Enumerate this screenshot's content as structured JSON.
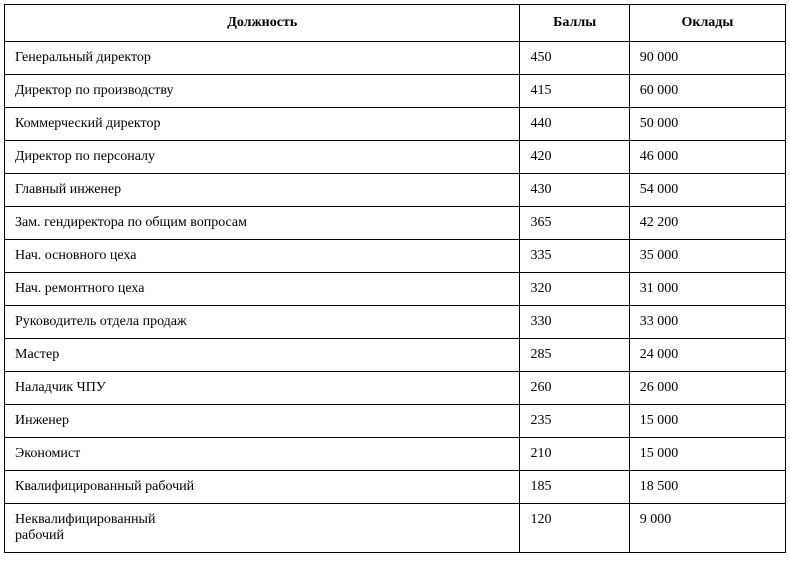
{
  "table": {
    "columns": [
      {
        "label": "Должность",
        "align": "center"
      },
      {
        "label": "Баллы",
        "align": "center"
      },
      {
        "label": "Оклады",
        "align": "center"
      }
    ],
    "rows": [
      {
        "position": "Генеральный директор",
        "points": "450",
        "salary": "90 000"
      },
      {
        "position": "Директор по производству",
        "points": "415",
        "salary": "60 000"
      },
      {
        "position": "Коммерческий директор",
        "points": "440",
        "salary": "50 000"
      },
      {
        "position": "Директор по персоналу",
        "points": "420",
        "salary": "46 000"
      },
      {
        "position": "Главный инженер",
        "points": "430",
        "salary": "54 000"
      },
      {
        "position": "Зам. гендиректора по общим вопросам",
        "points": "365",
        "salary": "42 200"
      },
      {
        "position": "Нач. основного цеха",
        "points": "335",
        "salary": "35 000"
      },
      {
        "position": "Нач. ремонтного цеха",
        "points": "320",
        "salary": "31 000"
      },
      {
        "position": "Руководитель отдела продаж",
        "points": "330",
        "salary": "33 000"
      },
      {
        "position": "Мастер",
        "points": "285",
        "salary": "24 000"
      },
      {
        "position": "Наладчик ЧПУ",
        "points": "260",
        "salary": "26 000"
      },
      {
        "position": "Инженер",
        "points": "235",
        "salary": "15 000"
      },
      {
        "position": "Экономист",
        "points": "210",
        "salary": "15 000"
      },
      {
        "position": "Квалифицированный рабочий",
        "points": "185",
        "salary": "18 500"
      },
      {
        "position": "Неквалифицированный\nрабочий",
        "points": "120",
        "salary": "9 000"
      }
    ],
    "border_color": "#000000",
    "background_color": "#ffffff",
    "font_family": "Georgia, 'Times New Roman', serif",
    "header_fontsize": 14,
    "cell_fontsize": 14,
    "column_widths": [
      "66%",
      "14%",
      "20%"
    ]
  }
}
